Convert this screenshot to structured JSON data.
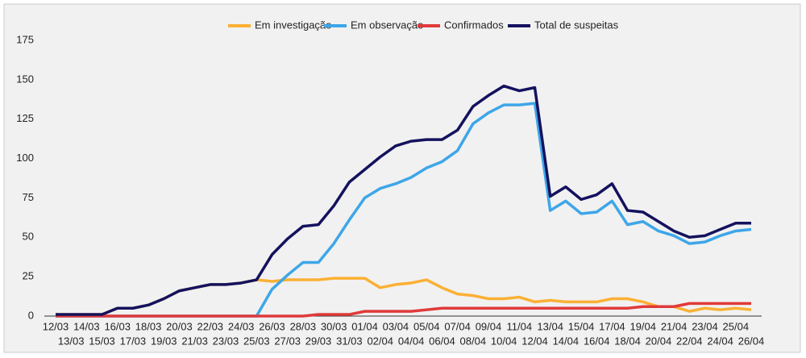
{
  "chart_data": {
    "type": "line",
    "categories": [
      "12/03",
      "13/03",
      "14/03",
      "15/03",
      "16/03",
      "17/03",
      "18/03",
      "19/03",
      "20/03",
      "21/03",
      "22/03",
      "23/03",
      "24/03",
      "25/03",
      "26/03",
      "27/03",
      "28/03",
      "29/03",
      "30/03",
      "31/03",
      "01/04",
      "02/04",
      "03/04",
      "04/04",
      "05/04",
      "06/04",
      "07/04",
      "08/04",
      "09/04",
      "10/04",
      "11/04",
      "12/04",
      "13/04",
      "14/04",
      "15/04",
      "16/04",
      "17/04",
      "18/04",
      "19/04",
      "20/04",
      "21/04",
      "22/04",
      "23/04",
      "24/04",
      "25/04",
      "26/04"
    ],
    "series": [
      {
        "name": "Em investigação",
        "color": "#fbb034",
        "values": [
          1,
          1,
          1,
          1,
          5,
          5,
          7,
          11,
          16,
          18,
          20,
          20,
          21,
          23,
          22,
          23,
          23,
          23,
          24,
          24,
          24,
          18,
          20,
          21,
          23,
          18,
          14,
          13,
          11,
          11,
          12,
          9,
          10,
          9,
          9,
          9,
          11,
          11,
          9,
          6,
          6,
          3,
          5,
          4,
          5,
          4
        ]
      },
      {
        "name": "Em observação",
        "color": "#3ea6e8",
        "values": [
          0,
          0,
          0,
          0,
          0,
          0,
          0,
          0,
          0,
          0,
          0,
          0,
          0,
          0,
          17,
          26,
          34,
          34,
          46,
          61,
          75,
          81,
          84,
          88,
          94,
          98,
          105,
          122,
          129,
          134,
          134,
          135,
          67,
          73,
          65,
          66,
          73,
          58,
          60,
          54,
          51,
          46,
          47,
          51,
          54,
          55
        ]
      },
      {
        "name": "Confirmados",
        "color": "#e03a3a",
        "values": [
          0,
          0,
          0,
          0,
          0,
          0,
          0,
          0,
          0,
          0,
          0,
          0,
          0,
          0,
          0,
          0,
          0,
          1,
          1,
          1,
          3,
          3,
          3,
          3,
          4,
          5,
          5,
          5,
          5,
          5,
          5,
          5,
          5,
          5,
          5,
          5,
          5,
          5,
          6,
          6,
          6,
          8,
          8,
          8,
          8,
          8
        ]
      },
      {
        "name": "Total de suspeitas",
        "color": "#14125e",
        "values": [
          1,
          1,
          1,
          1,
          5,
          5,
          7,
          11,
          16,
          18,
          20,
          20,
          21,
          23,
          39,
          49,
          57,
          58,
          70,
          85,
          93,
          101,
          108,
          111,
          112,
          112,
          118,
          133,
          140,
          146,
          143,
          145,
          76,
          82,
          74,
          77,
          84,
          67,
          66,
          60,
          54,
          50,
          51,
          55,
          59,
          59
        ]
      }
    ],
    "ylim": [
      0,
      175
    ],
    "yticks": [
      0,
      25,
      50,
      75,
      100,
      125,
      150,
      175
    ]
  }
}
